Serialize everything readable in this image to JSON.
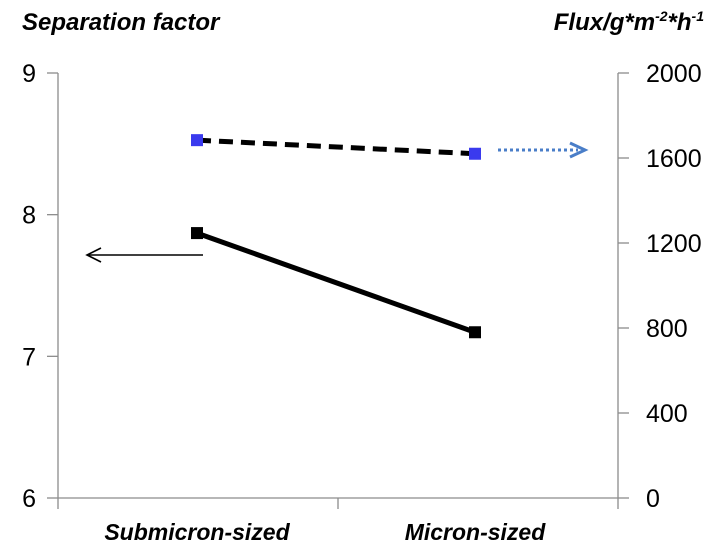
{
  "chart_data": {
    "type": "line",
    "left_axis_title": "Separation factor",
    "right_axis_title": {
      "base": "Flux/g*m",
      "exp1": "-2",
      "mid": "*h",
      "exp2": "-1"
    },
    "categories": [
      "Submicron-sized",
      "Micron-sized"
    ],
    "y_left": {
      "min": 6,
      "max": 9,
      "ticks": [
        "6",
        "7",
        "8",
        "9"
      ]
    },
    "y_right": {
      "min": 0,
      "max": 2000,
      "ticks": [
        "0",
        "400",
        "800",
        "1200",
        "1600",
        "2000"
      ]
    },
    "series": [
      {
        "axis": "left",
        "values": [
          7.87,
          7.17
        ],
        "line_color": "#000000",
        "marker_color": "#000000",
        "dash": "solid"
      },
      {
        "axis": "right",
        "values": [
          1684,
          1620
        ],
        "line_color": "#000000",
        "marker_color": "#3a3aee",
        "dash": "dashed"
      }
    ],
    "annotations": [
      {
        "type": "arrow",
        "points_to": "left axis",
        "color": "#000000",
        "style": "solid"
      },
      {
        "type": "arrow",
        "points_to": "right axis",
        "color": "#4a7ec8",
        "style": "dotted"
      }
    ],
    "grid": false,
    "legend": "none"
  }
}
